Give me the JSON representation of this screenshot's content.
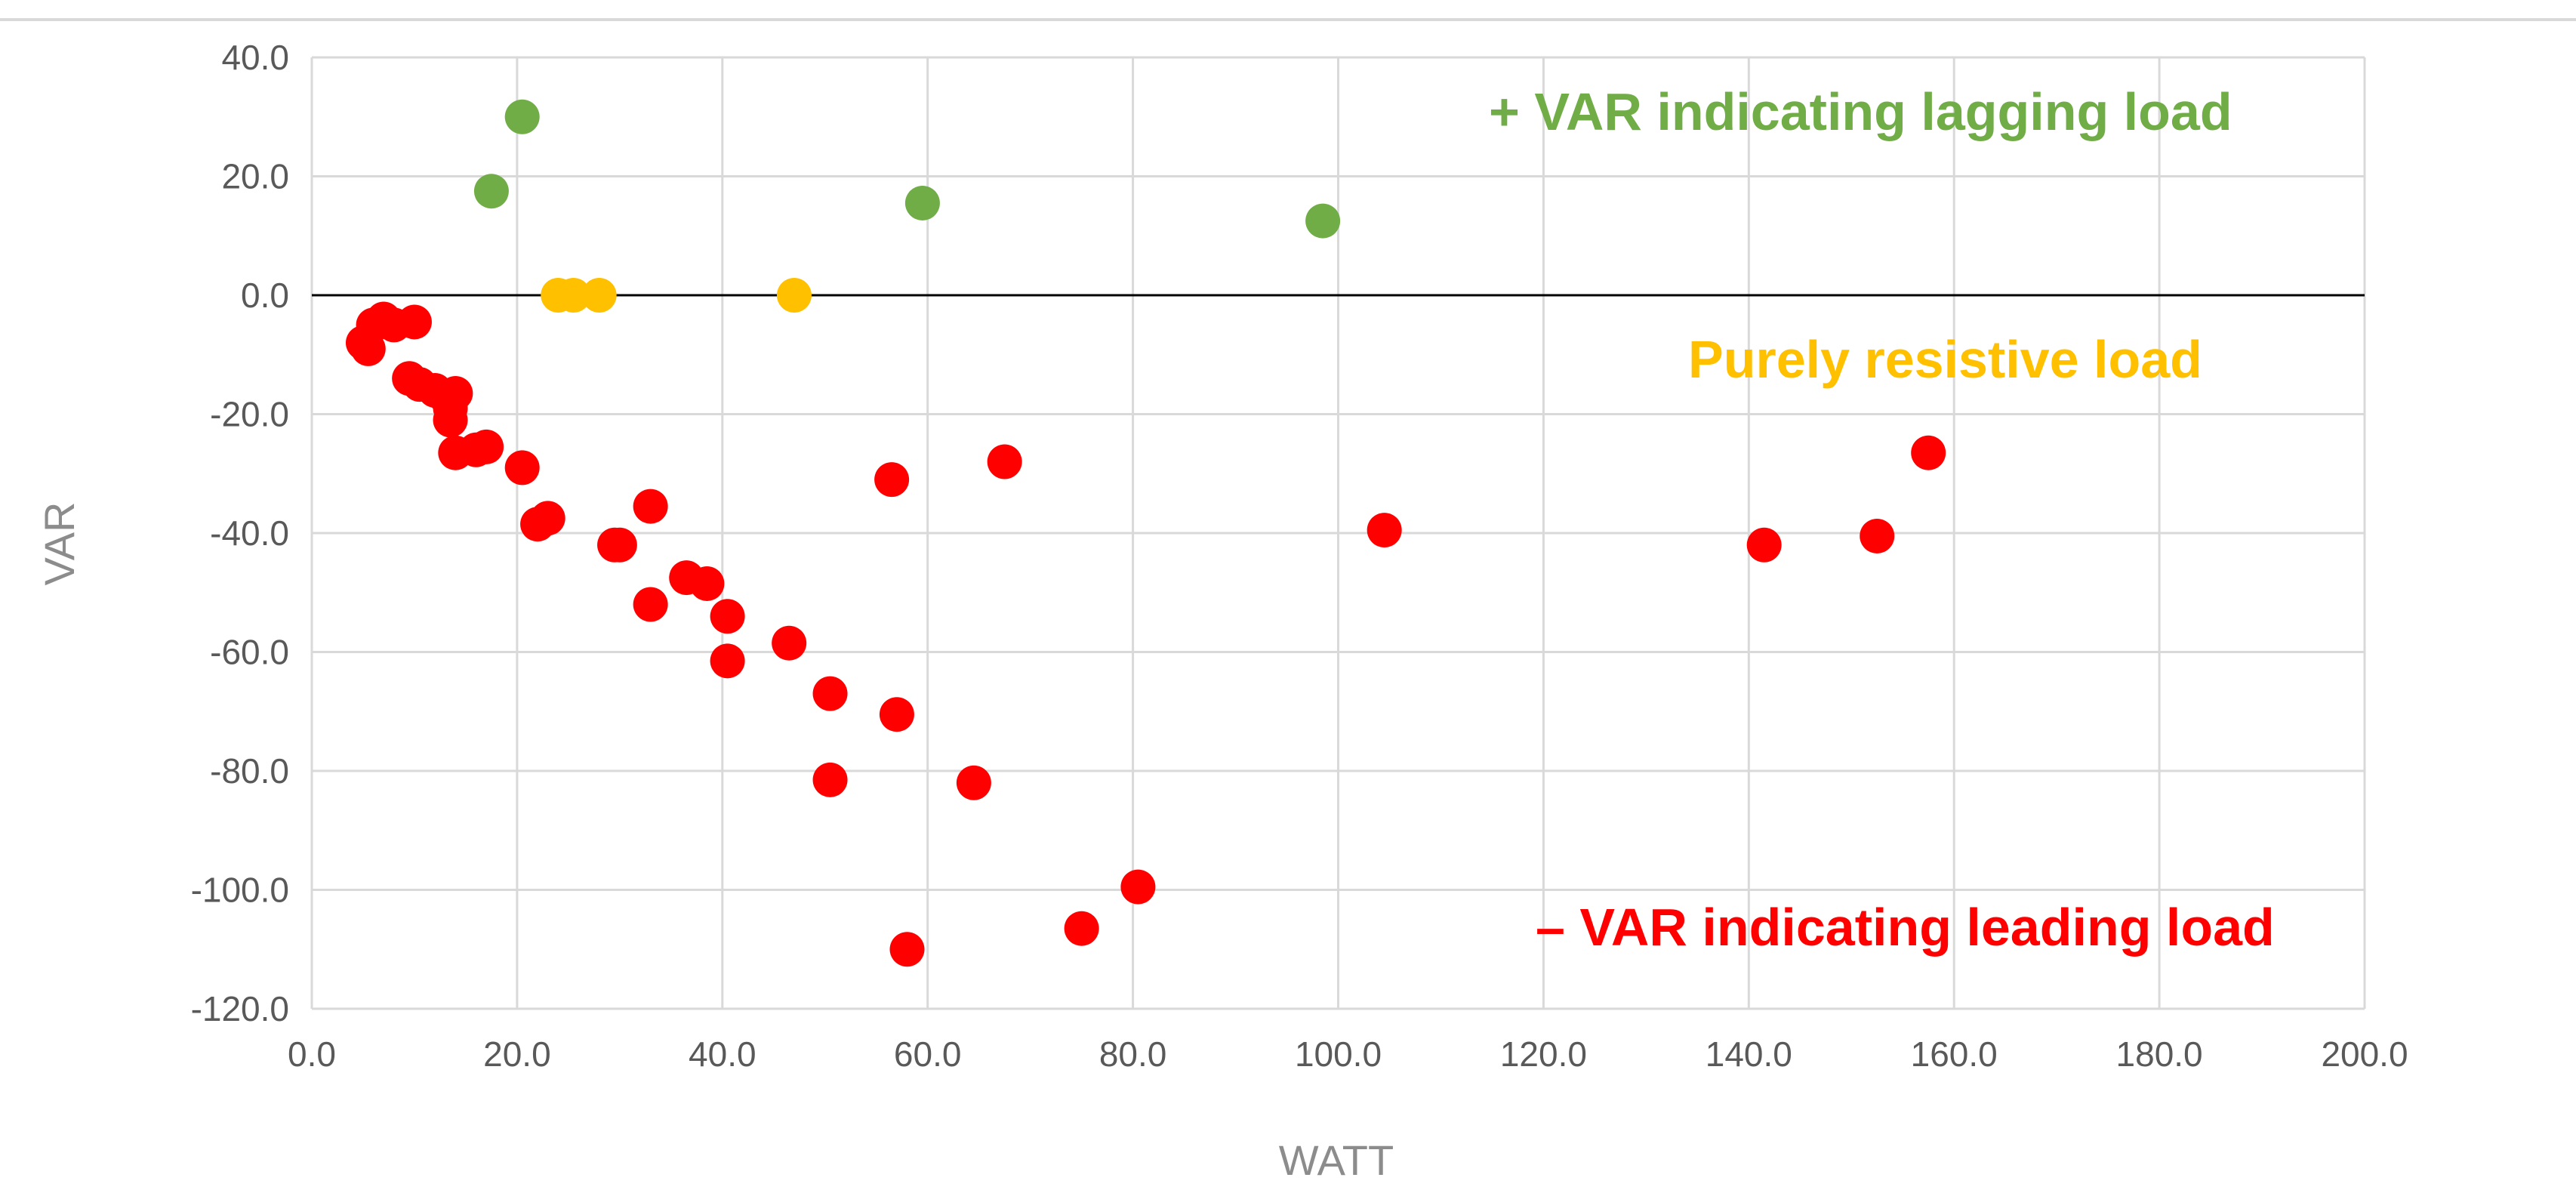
{
  "chart_data": {
    "type": "scatter",
    "title": "",
    "xlabel": "WATT",
    "ylabel": "VAR",
    "xlim": [
      0,
      200
    ],
    "ylim": [
      -120,
      40
    ],
    "x_tick_labels": [
      "0.0",
      "20.0",
      "40.0",
      "60.0",
      "80.0",
      "100.0",
      "120.0",
      "140.0",
      "160.0",
      "180.0",
      "200.0"
    ],
    "y_tick_labels": [
      "40.0",
      "20.0",
      "0.0",
      "-20.0",
      "-40.0",
      "-60.0",
      "-80.0",
      "-100.0",
      "-120.0"
    ],
    "grid": true,
    "legend": "none",
    "series": [
      {
        "name": "lagging",
        "color": "#70ad47",
        "points": [
          [
            17.5,
            17.5
          ],
          [
            20.5,
            30.0
          ],
          [
            59.5,
            15.5
          ],
          [
            98.5,
            12.5
          ]
        ]
      },
      {
        "name": "resistive",
        "color": "#ffc000",
        "points": [
          [
            24.0,
            0.0
          ],
          [
            25.5,
            0.0
          ],
          [
            28.0,
            0.0
          ],
          [
            47.0,
            0.0
          ]
        ]
      },
      {
        "name": "leading",
        "color": "#ff0000",
        "points": [
          [
            5.0,
            -8.0
          ],
          [
            5.5,
            -9.0
          ],
          [
            6.0,
            -5.0
          ],
          [
            7.0,
            -4.0
          ],
          [
            8.0,
            -5.0
          ],
          [
            10.0,
            -4.5
          ],
          [
            9.5,
            -14.0
          ],
          [
            10.5,
            -15.0
          ],
          [
            12.0,
            -16.0
          ],
          [
            13.0,
            -17.0
          ],
          [
            14.0,
            -16.5
          ],
          [
            13.5,
            -19.0
          ],
          [
            13.5,
            -21.0
          ],
          [
            14.0,
            -26.5
          ],
          [
            16.0,
            -26.0
          ],
          [
            17.0,
            -25.5
          ],
          [
            20.5,
            -29.0
          ],
          [
            22.0,
            -38.5
          ],
          [
            23.0,
            -37.5
          ],
          [
            29.5,
            -42.0
          ],
          [
            30.0,
            -42.0
          ],
          [
            33.0,
            -35.5
          ],
          [
            33.0,
            -52.0
          ],
          [
            36.5,
            -47.5
          ],
          [
            38.5,
            -48.5
          ],
          [
            40.5,
            -54.0
          ],
          [
            40.5,
            -61.5
          ],
          [
            46.5,
            -58.5
          ],
          [
            50.5,
            -67.0
          ],
          [
            50.5,
            -81.5
          ],
          [
            56.5,
            -31.0
          ],
          [
            57.0,
            -70.5
          ],
          [
            58.0,
            -110.0
          ],
          [
            64.5,
            -82.0
          ],
          [
            67.5,
            -28.0
          ],
          [
            75.0,
            -106.5
          ],
          [
            80.5,
            -99.5
          ],
          [
            104.5,
            -39.5
          ],
          [
            141.5,
            -42.0
          ],
          [
            152.5,
            -40.5
          ],
          [
            157.5,
            -26.5
          ]
        ]
      }
    ],
    "annotations": [
      {
        "text": "+ VAR indicating lagging load",
        "color": "#70ad47"
      },
      {
        "text": "Purely resistive load",
        "color": "#ffc000"
      },
      {
        "text": "– VAR indicating leading load",
        "color": "#ff0000"
      }
    ]
  }
}
